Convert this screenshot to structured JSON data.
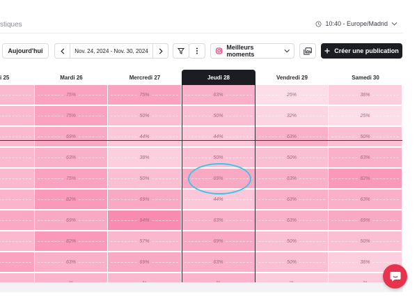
{
  "header": {
    "breadcrumb": "stiques",
    "timezone": "10:40 - Europe/Madrid"
  },
  "toolbar": {
    "today_label": "Aujourd'hui",
    "date_range": "Nov. 24, 2024 - Nov. 30, 2024",
    "best_moments_label": "Meilleurs moments",
    "create_label": "Créer une publication"
  },
  "days": [
    "i 25",
    "Mardi 26",
    "Mercredi 27",
    "Jeudi 28",
    "Vendredi 29",
    "Samedi 30"
  ],
  "active_day_index": 3,
  "heatmap": {
    "rows": [
      [
        "%",
        "75%",
        "75%",
        "63%",
        "25%",
        "38%"
      ],
      [
        "%",
        "75%",
        "50%",
        "50%",
        "32%",
        "25%"
      ],
      [
        "%",
        "69%",
        "44%",
        "44%",
        "63%",
        "50%"
      ],
      [
        "%",
        "63%",
        "38%",
        "50%",
        "50%",
        "63%"
      ],
      [
        "%",
        "75%",
        "50%",
        "69%",
        "63%",
        "82%"
      ],
      [
        "%",
        "82%",
        "69%",
        "44%",
        "63%",
        "63%"
      ],
      [
        "%",
        "69%",
        "94%",
        "63%",
        "63%",
        "69%"
      ],
      [
        "%",
        "82%",
        "57%",
        "69%",
        "50%",
        "50%"
      ],
      [
        "1%",
        "63%",
        "69%",
        "63%",
        "50%",
        "38%"
      ],
      [
        "%",
        "%",
        "%",
        "%",
        "%",
        "%"
      ]
    ],
    "intensity": [
      [
        0.55,
        0.75,
        0.75,
        0.63,
        0.25,
        0.38
      ],
      [
        0.55,
        0.75,
        0.5,
        0.5,
        0.32,
        0.25
      ],
      [
        0.55,
        0.69,
        0.44,
        0.44,
        0.63,
        0.5
      ],
      [
        0.55,
        0.63,
        0.38,
        0.5,
        0.5,
        0.63
      ],
      [
        0.55,
        0.75,
        0.5,
        0.69,
        0.63,
        0.82
      ],
      [
        0.6,
        0.82,
        0.69,
        0.44,
        0.63,
        0.63
      ],
      [
        0.7,
        0.69,
        0.94,
        0.63,
        0.63,
        0.69
      ],
      [
        0.55,
        0.82,
        0.57,
        0.69,
        0.5,
        0.5
      ],
      [
        0.75,
        0.63,
        0.69,
        0.63,
        0.5,
        0.38
      ],
      [
        0.55,
        0.6,
        0.55,
        0.6,
        0.4,
        0.4
      ]
    ]
  },
  "colors": {
    "accent_dark": "#1c1d22",
    "heat_low": "#fde3ec",
    "heat_high": "#f98ab0",
    "highlight_ring": "#38c7e6",
    "chat_button": "#e8334e"
  }
}
